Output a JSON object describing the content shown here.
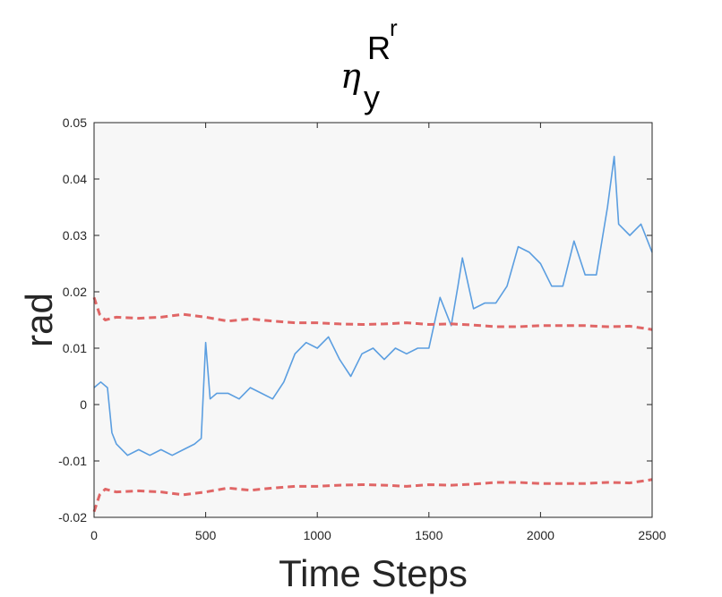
{
  "chart_data": {
    "type": "line",
    "title": {
      "symbol": "η",
      "subscript": "y",
      "superscript": "R",
      "super_superscript": "r"
    },
    "xlabel": "Time Steps",
    "ylabel": "rad",
    "xlim": [
      0,
      2500
    ],
    "ylim": [
      -0.02,
      0.05
    ],
    "xticks": [
      0,
      500,
      1000,
      1500,
      2000,
      2500
    ],
    "xtick_labels": [
      "0",
      "500",
      "1000",
      "1500",
      "2000",
      "2500"
    ],
    "yticks": [
      -0.02,
      -0.01,
      0,
      0.01,
      0.02,
      0.03,
      0.04,
      0.05
    ],
    "ytick_labels": [
      "-0.02",
      "-0.01",
      "0",
      "0.01",
      "0.02",
      "0.03",
      "0.04",
      "0.05"
    ],
    "grid": false,
    "plot_background": "#f7f7f7",
    "series": [
      {
        "style": "solid",
        "color": "#5b9ee0",
        "x": [
          0,
          30,
          60,
          80,
          100,
          150,
          200,
          250,
          300,
          350,
          400,
          450,
          480,
          500,
          520,
          550,
          600,
          650,
          700,
          750,
          800,
          850,
          900,
          950,
          1000,
          1050,
          1100,
          1150,
          1200,
          1250,
          1300,
          1350,
          1400,
          1450,
          1500,
          1550,
          1600,
          1630,
          1650,
          1700,
          1750,
          1800,
          1850,
          1900,
          1950,
          2000,
          2050,
          2100,
          2150,
          2200,
          2250,
          2300,
          2330,
          2350,
          2400,
          2450,
          2500
        ],
        "y": [
          0.003,
          0.004,
          0.003,
          -0.005,
          -0.007,
          -0.009,
          -0.008,
          -0.009,
          -0.008,
          -0.009,
          -0.008,
          -0.007,
          -0.006,
          0.011,
          0.001,
          0.002,
          0.002,
          0.001,
          0.003,
          0.002,
          0.001,
          0.004,
          0.009,
          0.011,
          0.01,
          0.012,
          0.008,
          0.005,
          0.009,
          0.01,
          0.008,
          0.01,
          0.009,
          0.01,
          0.01,
          0.019,
          0.014,
          0.021,
          0.026,
          0.017,
          0.018,
          0.018,
          0.021,
          0.028,
          0.027,
          0.025,
          0.021,
          0.021,
          0.029,
          0.023,
          0.023,
          0.035,
          0.044,
          0.032,
          0.03,
          0.032,
          0.027
        ]
      },
      {
        "style": "dashed",
        "color": "#e06666",
        "x": [
          0,
          25,
          50,
          100,
          200,
          300,
          400,
          500,
          600,
          700,
          800,
          900,
          1000,
          1100,
          1200,
          1300,
          1400,
          1500,
          1600,
          1700,
          1800,
          1900,
          2000,
          2100,
          2200,
          2300,
          2400,
          2500
        ],
        "y": [
          0.019,
          0.016,
          0.015,
          0.0155,
          0.0153,
          0.0155,
          0.016,
          0.0155,
          0.0148,
          0.0152,
          0.0148,
          0.0145,
          0.0145,
          0.0143,
          0.0142,
          0.0143,
          0.0145,
          0.0142,
          0.0143,
          0.0141,
          0.0138,
          0.0138,
          0.014,
          0.014,
          0.014,
          0.0138,
          0.0139,
          0.0133
        ]
      },
      {
        "style": "dashed",
        "color": "#e06666",
        "x": [
          0,
          25,
          50,
          100,
          200,
          300,
          400,
          500,
          600,
          700,
          800,
          900,
          1000,
          1100,
          1200,
          1300,
          1400,
          1500,
          1600,
          1700,
          1800,
          1900,
          2000,
          2100,
          2200,
          2300,
          2400,
          2500
        ],
        "y": [
          -0.019,
          -0.016,
          -0.015,
          -0.0155,
          -0.0153,
          -0.0155,
          -0.016,
          -0.0155,
          -0.0148,
          -0.0152,
          -0.0148,
          -0.0145,
          -0.0145,
          -0.0143,
          -0.0142,
          -0.0143,
          -0.0145,
          -0.0142,
          -0.0143,
          -0.0141,
          -0.0138,
          -0.0138,
          -0.014,
          -0.014,
          -0.014,
          -0.0138,
          -0.0139,
          -0.0133
        ]
      }
    ]
  }
}
